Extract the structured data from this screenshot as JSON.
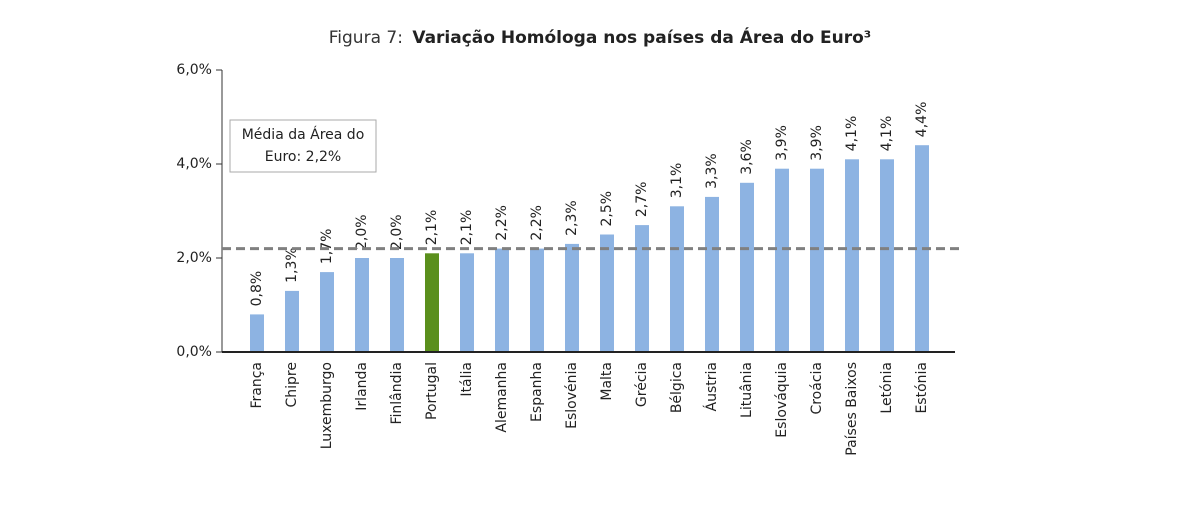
{
  "chart_data": {
    "type": "bar",
    "title_label": "Figura 7:",
    "title": "Variação Homóloga nos países da Área do Euro³",
    "categories": [
      "França",
      "Chipre",
      "Luxemburgo",
      "Irlanda",
      "Finlândia",
      "Portugal",
      "Itália",
      "Alemanha",
      "Espanha",
      "Eslovénia",
      "Malta",
      "Grécia",
      "Bélgica",
      "Áustria",
      "Lituânia",
      "Eslováquia",
      "Croácia",
      "Países Baixos",
      "Letónia",
      "Estónia"
    ],
    "values": [
      0.8,
      1.3,
      1.7,
      2.0,
      2.0,
      2.1,
      2.1,
      2.2,
      2.2,
      2.3,
      2.5,
      2.7,
      3.1,
      3.3,
      3.6,
      3.9,
      3.9,
      4.1,
      4.1,
      4.4
    ],
    "value_labels": [
      "0,8%",
      "1,3%",
      "1,7%",
      "2,0%",
      "2,0%",
      "2,1%",
      "2,1%",
      "2,2%",
      "2,2%",
      "2,3%",
      "2,5%",
      "2,7%",
      "3,1%",
      "3,3%",
      "3,6%",
      "3,9%",
      "3,9%",
      "4,1%",
      "4,1%",
      "4,4%"
    ],
    "colors": [
      "#8db3e2",
      "#8db3e2",
      "#8db3e2",
      "#8db3e2",
      "#8db3e2",
      "#5a8f1c",
      "#8db3e2",
      "#8db3e2",
      "#8db3e2",
      "#8db3e2",
      "#8db3e2",
      "#8db3e2",
      "#8db3e2",
      "#8db3e2",
      "#8db3e2",
      "#8db3e2",
      "#8db3e2",
      "#8db3e2",
      "#8db3e2",
      "#8db3e2"
    ],
    "ylim": [
      0,
      6
    ],
    "yticks": [
      {
        "value": 0,
        "label": "0,0%"
      },
      {
        "value": 2,
        "label": "2,0%"
      },
      {
        "value": 4,
        "label": "4,0%"
      },
      {
        "value": 6,
        "label": "6,0%"
      }
    ],
    "reference_line": {
      "value": 2.2,
      "color": "#808080"
    },
    "annotation": [
      "Média da Área do",
      "Euro: 2,2%"
    ]
  }
}
